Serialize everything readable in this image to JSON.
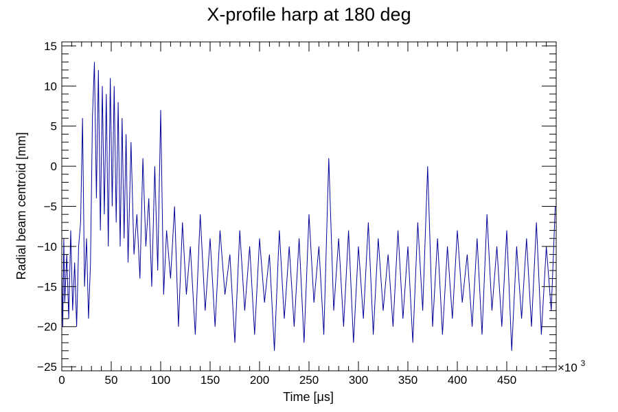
{
  "chart_data": {
    "type": "line",
    "title": "X-profile harp at 180 deg",
    "xlabel": "Time [μs]",
    "ylabel": "Radial beam centroid [mm]",
    "x_multiplier": "×10",
    "x_multiplier_exp": "3",
    "xlim": [
      0,
      500
    ],
    "ylim": [
      -25.5,
      15.5
    ],
    "x_ticks": [
      0,
      50,
      100,
      150,
      200,
      250,
      300,
      350,
      400,
      450
    ],
    "x_tick_labels": [
      "0",
      "50",
      "100",
      "150",
      "200",
      "250",
      "300",
      "350",
      "400",
      "450"
    ],
    "y_ticks": [
      -25,
      -20,
      -15,
      -10,
      -5,
      0,
      5,
      10,
      15
    ],
    "y_tick_labels": [
      "−25",
      "−20",
      "−15",
      "−10",
      "−5",
      "0",
      "5",
      "10",
      "15"
    ],
    "grid": false,
    "series_color": "#000099",
    "series": [
      {
        "x": [
          0,
          1,
          2,
          3,
          5,
          7,
          9,
          11,
          13,
          15,
          17,
          19,
          21,
          23,
          25,
          27,
          29,
          31,
          33,
          35,
          37,
          39,
          41,
          43,
          45,
          47,
          49,
          51,
          53,
          55,
          57,
          59,
          61,
          63,
          65,
          67,
          70,
          73,
          76,
          79,
          82,
          85,
          88,
          91,
          94,
          97,
          100,
          103,
          106,
          110,
          114,
          118,
          122,
          126,
          130,
          135,
          140,
          145,
          150,
          155,
          160,
          165,
          170,
          175,
          180,
          185,
          190,
          195,
          200,
          205,
          210,
          215,
          220,
          225,
          230,
          235,
          240,
          245,
          250,
          255,
          260,
          265,
          270,
          275,
          280,
          285,
          290,
          295,
          300,
          305,
          310,
          315,
          320,
          325,
          330,
          335,
          340,
          345,
          350,
          355,
          360,
          365,
          370,
          375,
          380,
          385,
          390,
          395,
          400,
          405,
          410,
          415,
          420,
          425,
          430,
          435,
          440,
          445,
          450,
          455,
          460,
          465,
          470,
          475,
          480,
          485,
          490,
          495,
          499
        ],
        "y": [
          -13,
          -20,
          -9,
          -17,
          -11,
          -19,
          -8,
          -18,
          -12,
          -20,
          -10,
          -7,
          6,
          -15,
          -9,
          -19,
          -12,
          6,
          13,
          -4,
          12,
          -8,
          10,
          -6,
          9,
          -10,
          11,
          -5,
          10,
          -7,
          8,
          -10,
          6,
          -9,
          4,
          -12,
          3,
          -11,
          -6,
          -14,
          1,
          -10,
          -4,
          -15,
          0,
          -13,
          7,
          -16,
          -8,
          -14,
          -5,
          -20,
          -7,
          -16,
          -10,
          -21,
          -6,
          -18,
          -9,
          -20,
          -8,
          -16,
          -11,
          -22,
          -8,
          -18,
          -10,
          -21,
          -9,
          -17,
          -11,
          -23,
          -8,
          -19,
          -10,
          -20,
          -9,
          -22,
          -6,
          -17,
          -10,
          -21,
          1,
          -18,
          -9,
          -20,
          -8,
          -22,
          -10,
          -19,
          -7,
          -21,
          -9,
          -18,
          -11,
          -20,
          -8,
          -19,
          -10,
          -22,
          -7,
          -18,
          0,
          -20,
          -9,
          -21,
          -10,
          -19,
          -8,
          -17,
          -11,
          -20,
          -9,
          -21,
          -6,
          -18,
          -10,
          -20,
          -8,
          -23,
          -10,
          -19,
          -9,
          -20,
          -7,
          -21,
          -10,
          -18,
          -5
        ]
      }
    ]
  }
}
